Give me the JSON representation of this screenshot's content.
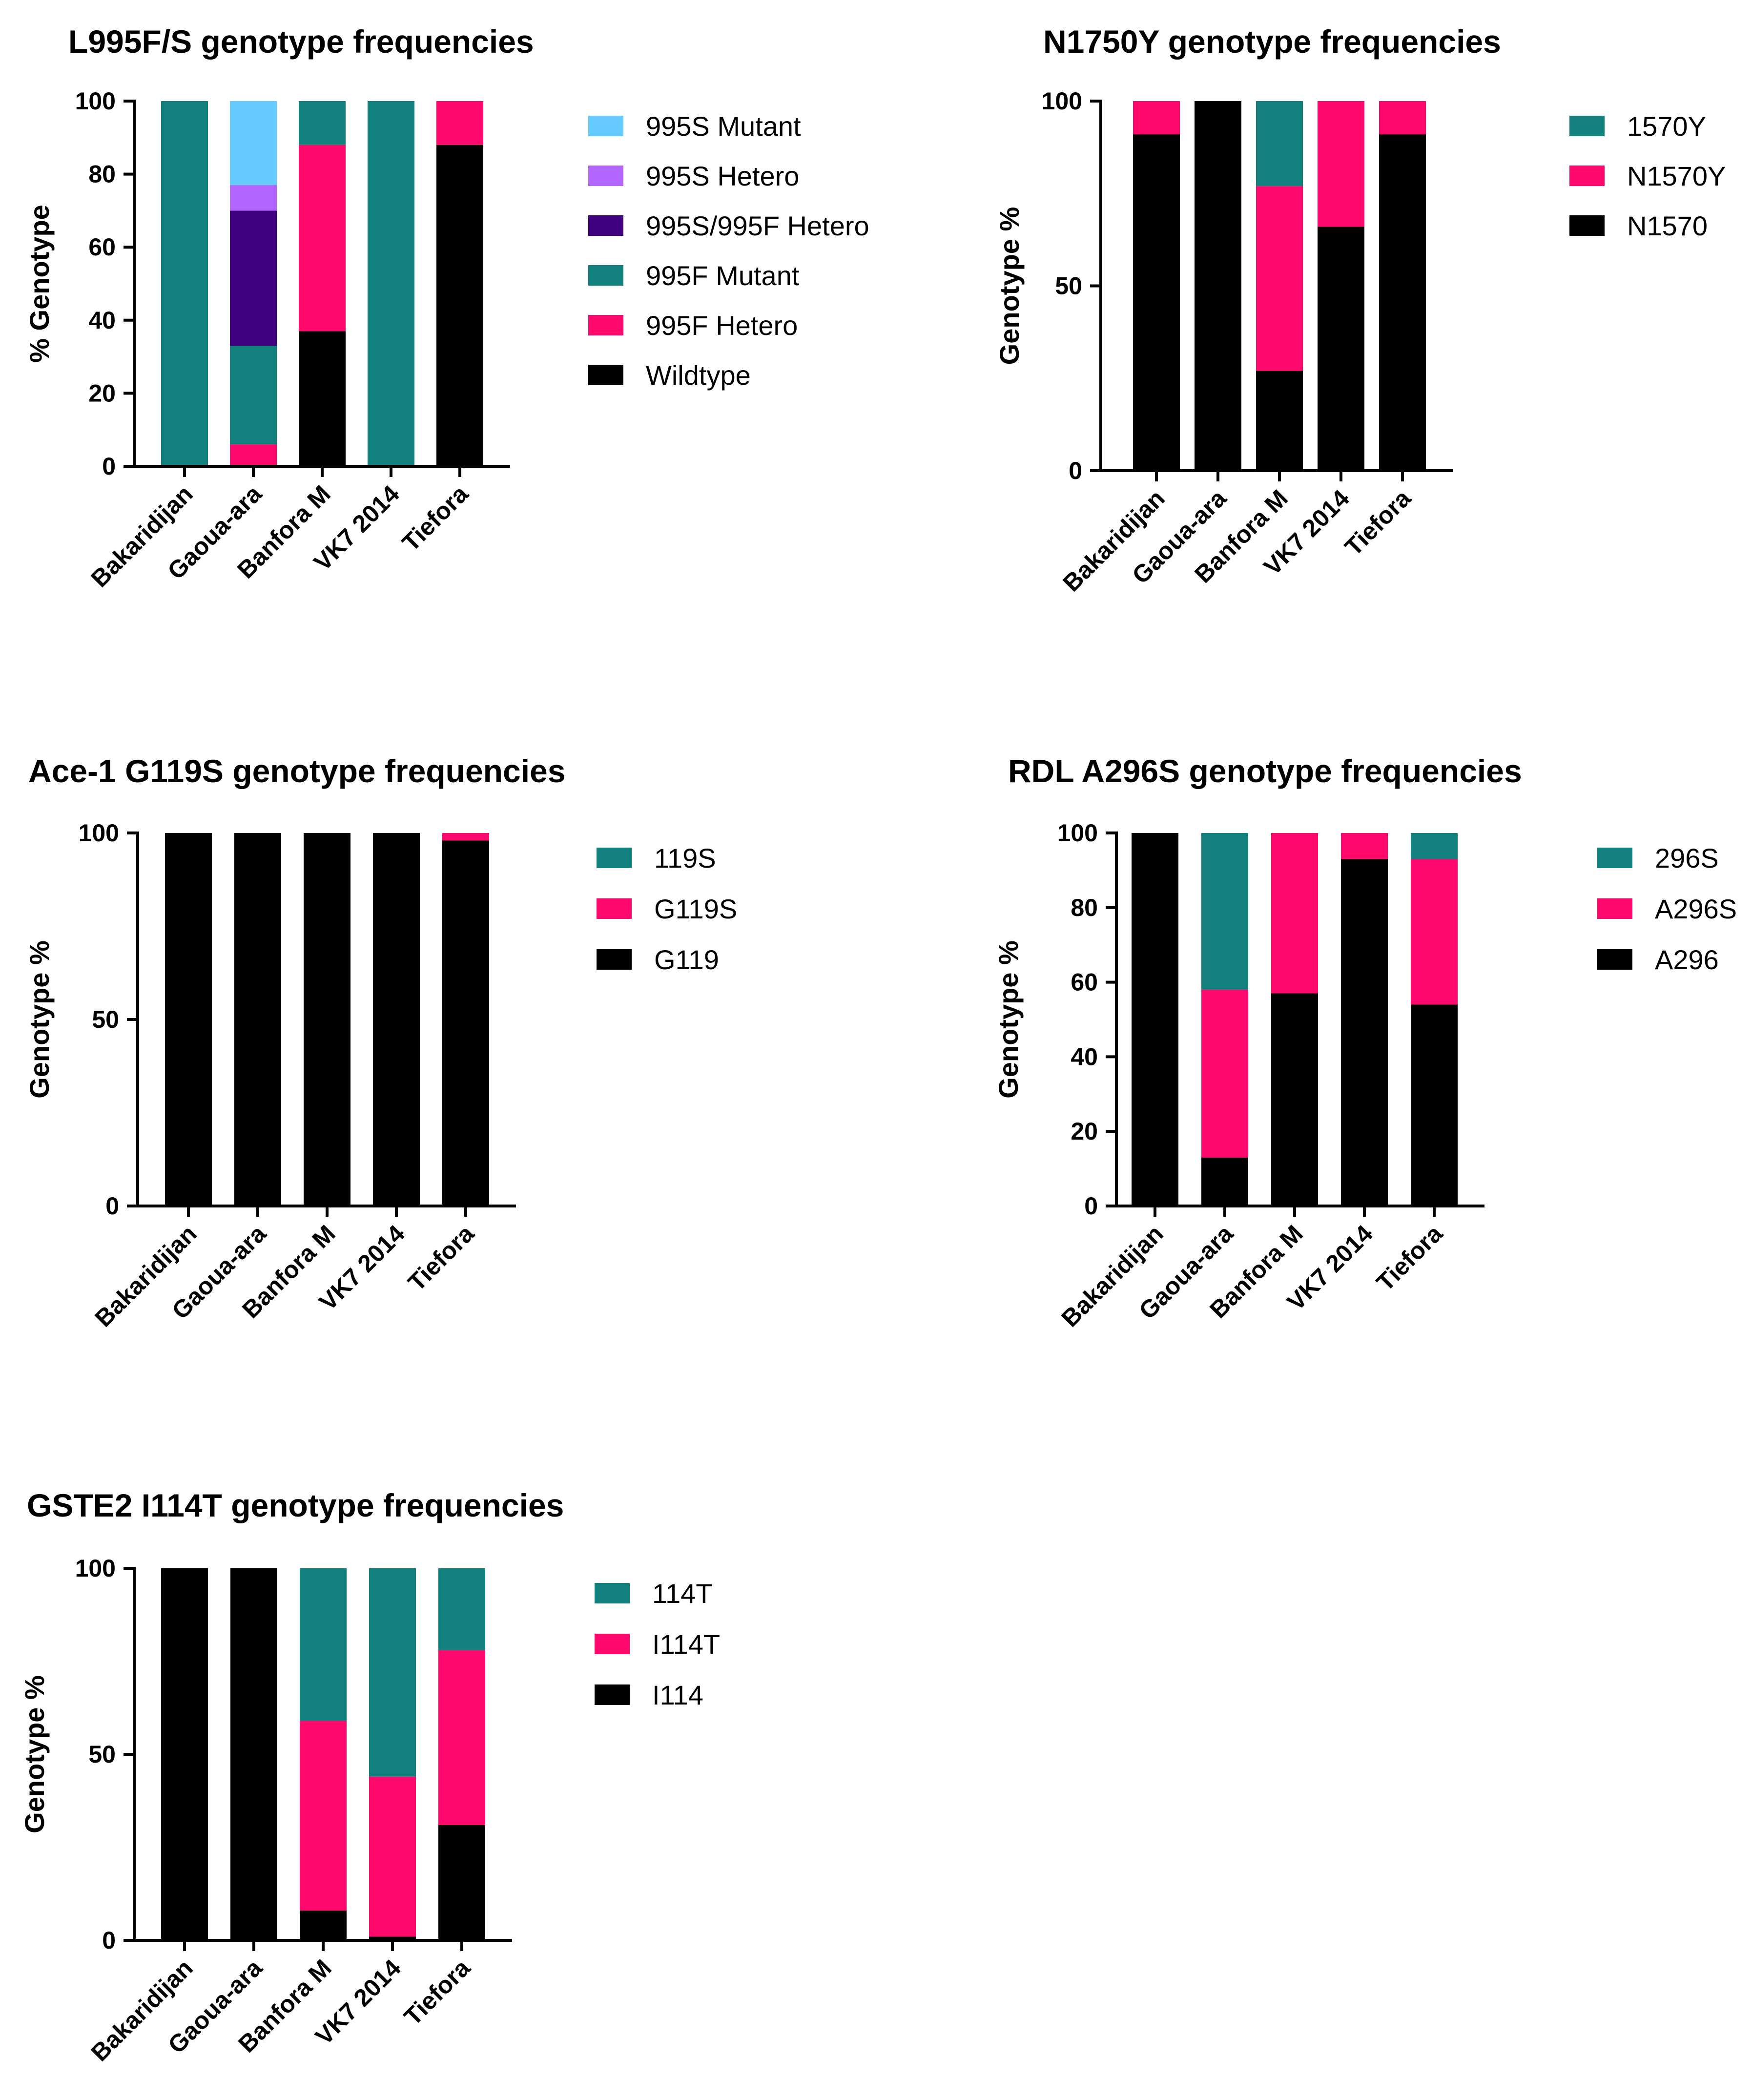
{
  "colors": {
    "wildtype": "#000000",
    "hetero": "#FF0A6C",
    "mutant": "#12807C",
    "s995f_hetero": "#3F0080",
    "s995_hetero": "#B366FF",
    "s995_mutant": "#66CCFF"
  },
  "chart_data": [
    {
      "type": "bar",
      "stacked": true,
      "title": "L995F/S genotype frequencies",
      "ylabel": "% Genotype",
      "ylim": [
        0,
        100
      ],
      "yticks": [
        "0",
        "20",
        "40",
        "60",
        "80",
        "100"
      ],
      "ytick_values": [
        0,
        20,
        40,
        60,
        80,
        100
      ],
      "categories": [
        "Bakaridijan",
        "Gaoua-ara",
        "Banfora M",
        "VK7 2014",
        "Tiefora"
      ],
      "legend": [
        "995S Mutant",
        "995S Hetero",
        "995S/995F Hetero",
        "995F Mutant",
        "995F Hetero",
        "Wildtype"
      ],
      "series": [
        {
          "name": "Wildtype",
          "color": "#000000",
          "values": [
            0,
            0,
            37,
            0,
            88
          ]
        },
        {
          "name": "995F Hetero",
          "color": "#FF0A6C",
          "values": [
            0,
            6,
            51,
            0,
            12
          ]
        },
        {
          "name": "995F Mutant",
          "color": "#12807C",
          "values": [
            100,
            27,
            12,
            100,
            0
          ]
        },
        {
          "name": "995S/995F Hetero",
          "color": "#3F0080",
          "values": [
            0,
            37,
            0,
            0,
            0
          ]
        },
        {
          "name": "995S Hetero",
          "color": "#B366FF",
          "values": [
            0,
            7,
            0,
            0,
            0
          ]
        },
        {
          "name": "995S Mutant",
          "color": "#66CCFF",
          "values": [
            0,
            23,
            0,
            0,
            0
          ]
        }
      ]
    },
    {
      "type": "bar",
      "stacked": true,
      "title": "N1750Y genotype frequencies",
      "ylabel": "Genotype %",
      "ylim": [
        0,
        100
      ],
      "yticks": [
        "0",
        "50",
        "100"
      ],
      "ytick_values": [
        0,
        50,
        100
      ],
      "categories": [
        "Bakaridijan",
        "Gaoua-ara",
        "Banfora M",
        "VK7 2014",
        "Tiefora"
      ],
      "legend": [
        "1570Y",
        "N1570Y",
        "N1570"
      ],
      "series": [
        {
          "name": "N1570",
          "color": "#000000",
          "values": [
            91,
            100,
            27,
            66,
            91
          ]
        },
        {
          "name": "N1570Y",
          "color": "#FF0A6C",
          "values": [
            9,
            0,
            50,
            34,
            9
          ]
        },
        {
          "name": "1570Y",
          "color": "#12807C",
          "values": [
            0,
            0,
            23,
            0,
            0
          ]
        }
      ]
    },
    {
      "type": "bar",
      "stacked": true,
      "title": "Ace-1 G119S genotype frequencies",
      "ylabel": "Genotype %",
      "ylim": [
        0,
        100
      ],
      "yticks": [
        "0",
        "50",
        "100"
      ],
      "ytick_values": [
        0,
        50,
        100
      ],
      "categories": [
        "Bakaridijan",
        "Gaoua-ara",
        "Banfora M",
        "VK7 2014",
        "Tiefora"
      ],
      "legend": [
        "119S",
        "G119S",
        "G119"
      ],
      "series": [
        {
          "name": "G119",
          "color": "#000000",
          "values": [
            100,
            100,
            100,
            100,
            98
          ]
        },
        {
          "name": "G119S",
          "color": "#FF0A6C",
          "values": [
            0,
            0,
            0,
            0,
            2
          ]
        },
        {
          "name": "119S",
          "color": "#12807C",
          "values": [
            0,
            0,
            0,
            0,
            0
          ]
        }
      ]
    },
    {
      "type": "bar",
      "stacked": true,
      "title": "RDL A296S genotype frequencies",
      "ylabel": "Genotype %",
      "ylim": [
        0,
        100
      ],
      "yticks": [
        "0",
        "20",
        "40",
        "60",
        "80",
        "100"
      ],
      "ytick_values": [
        0,
        20,
        40,
        60,
        80,
        100
      ],
      "categories": [
        "Bakaridijan",
        "Gaoua-ara",
        "Banfora M",
        "VK7 2014",
        "Tiefora"
      ],
      "legend": [
        "296S",
        "A296S",
        "A296"
      ],
      "series": [
        {
          "name": "A296",
          "color": "#000000",
          "values": [
            100,
            13,
            57,
            93,
            54
          ]
        },
        {
          "name": "A296S",
          "color": "#FF0A6C",
          "values": [
            0,
            45,
            43,
            7,
            39
          ]
        },
        {
          "name": "296S",
          "color": "#12807C",
          "values": [
            0,
            42,
            0,
            0,
            7
          ]
        }
      ]
    },
    {
      "type": "bar",
      "stacked": true,
      "title": "GSTE2 I114T genotype frequencies",
      "ylabel": "Genotype %",
      "ylim": [
        0,
        100
      ],
      "yticks": [
        "0",
        "50",
        "100"
      ],
      "ytick_values": [
        0,
        50,
        100
      ],
      "categories": [
        "Bakaridijan",
        "Gaoua-ara",
        "Banfora M",
        "VK7 2014",
        "Tiefora"
      ],
      "legend": [
        "114T",
        "I114T",
        "I114"
      ],
      "series": [
        {
          "name": "I114",
          "color": "#000000",
          "values": [
            100,
            100,
            8,
            1,
            31
          ]
        },
        {
          "name": "I114T",
          "color": "#FF0A6C",
          "values": [
            0,
            0,
            51,
            43,
            47
          ]
        },
        {
          "name": "114T",
          "color": "#12807C",
          "values": [
            0,
            0,
            41,
            56,
            22
          ]
        }
      ]
    }
  ]
}
